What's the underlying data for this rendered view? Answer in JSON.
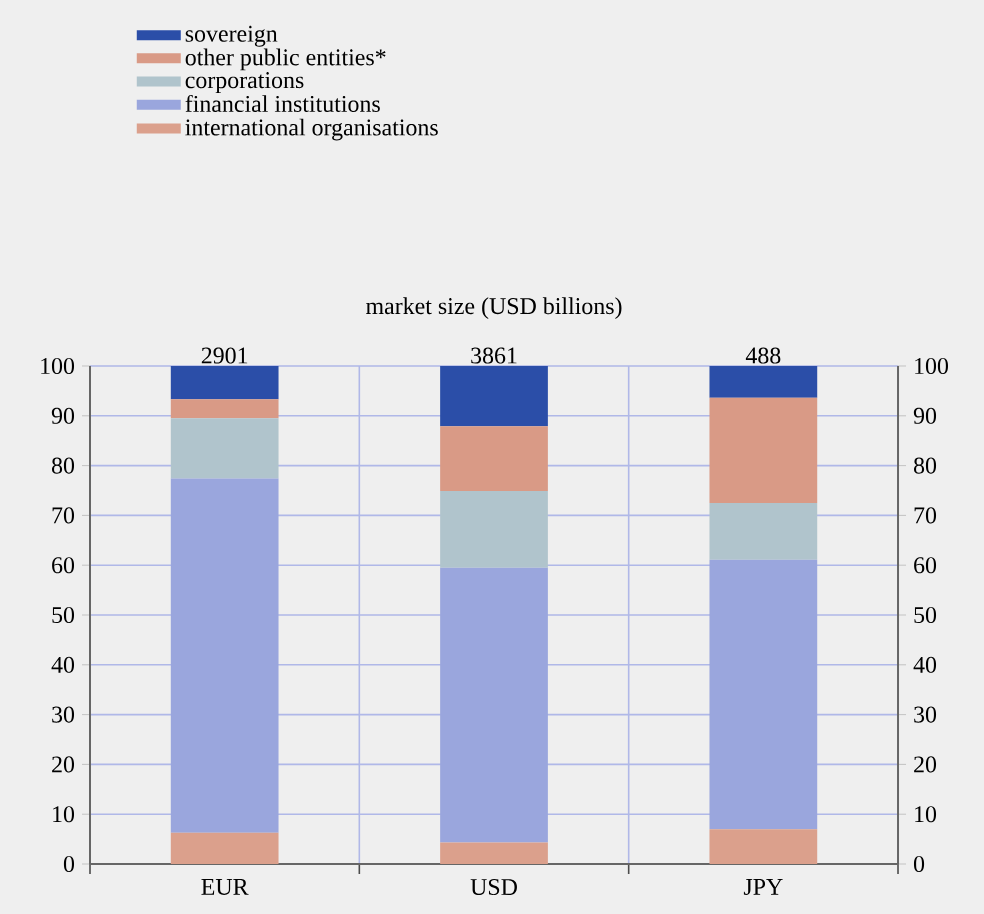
{
  "chart_data": {
    "type": "bar",
    "stacked": true,
    "title": "market size (USD billions)",
    "categories": [
      "EUR",
      "USD",
      "JPY"
    ],
    "series": [
      {
        "name": "international organisations",
        "color": "#dba08c",
        "values": [
          6.3,
          4.3,
          7.0
        ]
      },
      {
        "name": "financial institutions",
        "color": "#9aa6dd",
        "values": [
          71.1,
          55.2,
          54.1
        ]
      },
      {
        "name": "corporations",
        "color": "#b0c4cc",
        "values": [
          12.1,
          15.4,
          11.4
        ]
      },
      {
        "name": "other public entities*",
        "color": "#d99a86",
        "values": [
          3.8,
          13.0,
          21.1
        ]
      },
      {
        "name": "sovereign",
        "color": "#2b4ea8",
        "values": [
          6.7,
          12.1,
          6.4
        ]
      }
    ],
    "annotations": [
      "2901",
      "3861",
      "488"
    ],
    "ylim": [
      0,
      100
    ],
    "yticks": [
      0,
      10,
      20,
      30,
      40,
      50,
      60,
      70,
      80,
      90,
      100
    ],
    "y2lim": [
      0,
      100
    ],
    "y2ticks": [
      0,
      10,
      20,
      30,
      40,
      50,
      60,
      70,
      80,
      90,
      100
    ],
    "grid": true,
    "legend": "top left"
  }
}
